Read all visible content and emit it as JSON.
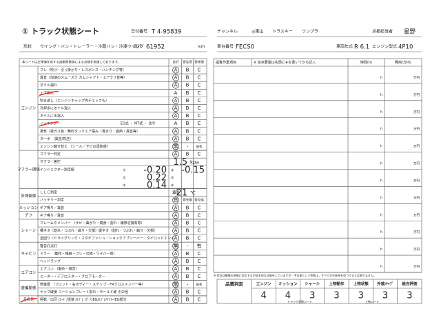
{
  "header": {
    "title": "① トラック状態シート",
    "number_label": "日付番号",
    "number": "T 4-95839",
    "channel_label": "チャンネル",
    "channels": [
      "◎東山",
      "トラスキー",
      "ワンプラ"
    ],
    "inspector_label": "点検担当者",
    "inspector": "星野"
  },
  "info": {
    "shape_label": "形状",
    "shape": "ウイング・バン・トレーラー・冷蔵バン・冷凍ウイング",
    "mileage_label": "走行",
    "mileage": "61952",
    "mileage_unit": "km",
    "chassis_label": "車台番号",
    "chassis": "FECS0",
    "year_label": "車両年式",
    "year": "R 6.1",
    "engine_label": "エンジン型式",
    "engine": "4P10"
  },
  "left": {
    "note": "本シートは正常値を有する自動移管値による点検を実施しております。",
    "headers": [
      "良好",
      "要注意",
      "要修理"
    ],
    "groups": [
      {
        "name": "エンジン",
        "rows": [
          {
            "item": "ブレ（吹け・引っ掛かり・レスポンス・ハンチング等）",
            "options": [
              "A",
              "B",
              "C"
            ]
          },
          {
            "item": "異音（加速のスムーズさ カムシャフト・エアクリ音等）",
            "options": [
              "A",
              "B",
              "C"
            ]
          },
          {
            "item": "オイル漏れ",
            "options": [
              "A",
              "B",
              "C"
            ]
          },
          {
            "item": "エア漏れ",
            "options": [
              "A",
              "B",
              "C"
            ]
          },
          {
            "item": "吹き返し（エンジンキャップ内チェックも）",
            "options": [
              "A",
              "B",
              "C"
            ]
          },
          {
            "item": "冷却水にオイル混入",
            "options": [
              "A",
              "B",
              "C"
            ]
          },
          {
            "item": "オイルに水混入",
            "options": [
              "A",
              "B",
              "C"
            ]
          },
          {
            "item": "ノッキング",
            "extra": "EG式 ・ MT式 ・ 法令",
            "options": [
              "A",
              "B",
              "C"
            ]
          },
          {
            "item": "排気（排ガス色／無料タンクエア漏み（凝まり・過熱・異音等）",
            "options": [
              "A",
              "B",
              "C"
            ]
          },
          {
            "item": "ターボ （異音/負圧）",
            "options": [
              "A",
              "B",
              "C"
            ]
          },
          {
            "item": "エンジン載せ替え （シール／サビの違和感）",
            "options": [
              "無",
              "-",
              "居有"
            ]
          }
        ]
      },
      {
        "name": "マフラー関係",
        "rows": [
          {
            "item": "マフラー判定",
            "options": [
              "A",
              "B",
              "C"
            ]
          },
          {
            "item": "マフラー差圧",
            "value": "1.5",
            "unit": "kpa"
          },
          {
            "item": "インジェクター測定値",
            "readings": [
              {
                "no": "①",
                "value": "-0.20"
              },
              {
                "no": "④",
                "value": "-0.15"
              },
              {
                "no": "②",
                "value": "0.22"
              },
              {
                "no": "⑤",
                "value": ""
              },
              {
                "no": "③",
                "value": "0.14"
              },
              {
                "no": "⑥",
                "value": ""
              }
            ]
          }
        ]
      },
      {
        "name": "計測関係",
        "rows": [
          {
            "item": "ＬＬＣ判定",
            "label2": "濃度",
            "value": "-21",
            "unit": "℃"
          },
          {
            "item": "バッテリー判定",
            "options": [
              "良",
              "要充電",
              "要交換"
            ]
          }
        ]
      },
      {
        "name": "ミッション",
        "rows": [
          {
            "item": "ギア鳴り／異音",
            "options": [
              "A",
              "B",
              "C"
            ]
          }
        ]
      },
      {
        "name": "デフ",
        "rows": [
          {
            "item": "ギア鳴り／異音",
            "options": [
              "A",
              "B",
              "C"
            ]
          }
        ]
      },
      {
        "name": "シャーシ",
        "rows": [
          {
            "item": "フレームやメンバー （サビ・曲がり・腐食・割れ・補修溶接有等）",
            "options": [
              "A",
              "B",
              "C"
            ]
          },
          {
            "item": "構ネタ（割れ・つぶれ・曲り・欠損）縦ネタ（割れ・つぶれ・曲り・欠損）",
            "options": [
              "A",
              "B",
              "C"
            ]
          },
          {
            "item": "足回り（ドラッグリンク・スタビブッシュ・ショックアブソーバー・タイロッドエンド）",
            "options": [
              "A",
              "B",
              "C"
            ]
          }
        ]
      },
      {
        "name": "キャビン",
        "rows": [
          {
            "item": "警告灯点灯",
            "options": [
              "無",
              "-",
              "有"
            ]
          },
          {
            "item": "ミラー （動作・格納・ブレ・欠損・ワイパー等）",
            "options": [
              "A",
              "B",
              "C"
            ]
          },
          {
            "item": "ヘッドランプ",
            "options": [
              "A",
              "B",
              "C"
            ]
          }
        ]
      },
      {
        "name": "エアコン",
        "rows": [
          {
            "item": "エアコン （動作・異音）",
            "options": [
              "A",
              "B",
              "C"
            ]
          },
          {
            "item": "ヒーター・デフロスター・ブロアモーター",
            "options": [
              "A",
              "B",
              "C"
            ]
          }
        ]
      },
      {
        "name": "装備関係",
        "rows": [
          {
            "item": "修装置 （フロント・右ボディー・ステップ・FRクロスメンバー等）",
            "options": [
              "無",
              "-",
              "居有"
            ]
          },
          {
            "item": "ヤァブ破損 コーションプレート割れ・モールド破 その他",
            "options": [
              "A",
              "B",
              "C"
            ]
          }
        ]
      },
      {
        "name": "その他",
        "rows": [
          {
            "item": "極数／出尽 /ﾕｰﾄﾞ/塗装 /ﾙﾌﾞﾚ /ｸﾞﾘｽEG/ﾙﾌﾞﾚ/ﾏﾌﾗｰ/EG部分",
            "options": [
              "A",
              "B",
              "C"
            ]
          }
        ]
      }
    ]
  },
  "right": {
    "headers": [
      "提覧作業項目",
      "※ 加点要望は先頭に★を書いてから記入",
      "時間(h)",
      "費用(万円)"
    ],
    "time_unit": "h",
    "cost_unit": "万円",
    "rows": 12,
    "note": "※ 状況は概略の有無に対応するが自主的な点検をしていますが、中古車という性質上、すべての不具合を見つけるとは限りません。"
  },
  "summary": {
    "label": "品質判定",
    "columns": [
      {
        "name": "エンジン",
        "score": "4"
      },
      {
        "name": "ミッション",
        "score": "4"
      },
      {
        "name": "シャーシ",
        "score": "3"
      },
      {
        "name": "上物動作",
        "score": "3"
      },
      {
        "name": "上物状態",
        "score": "3"
      },
      {
        "name": "外装/ｷｬﾌﾞ",
        "score": "3"
      },
      {
        "name": "総合評価",
        "score": "3"
      }
    ],
    "sub_left": "トラック状態シート",
    "sub_right": "上物シート"
  }
}
